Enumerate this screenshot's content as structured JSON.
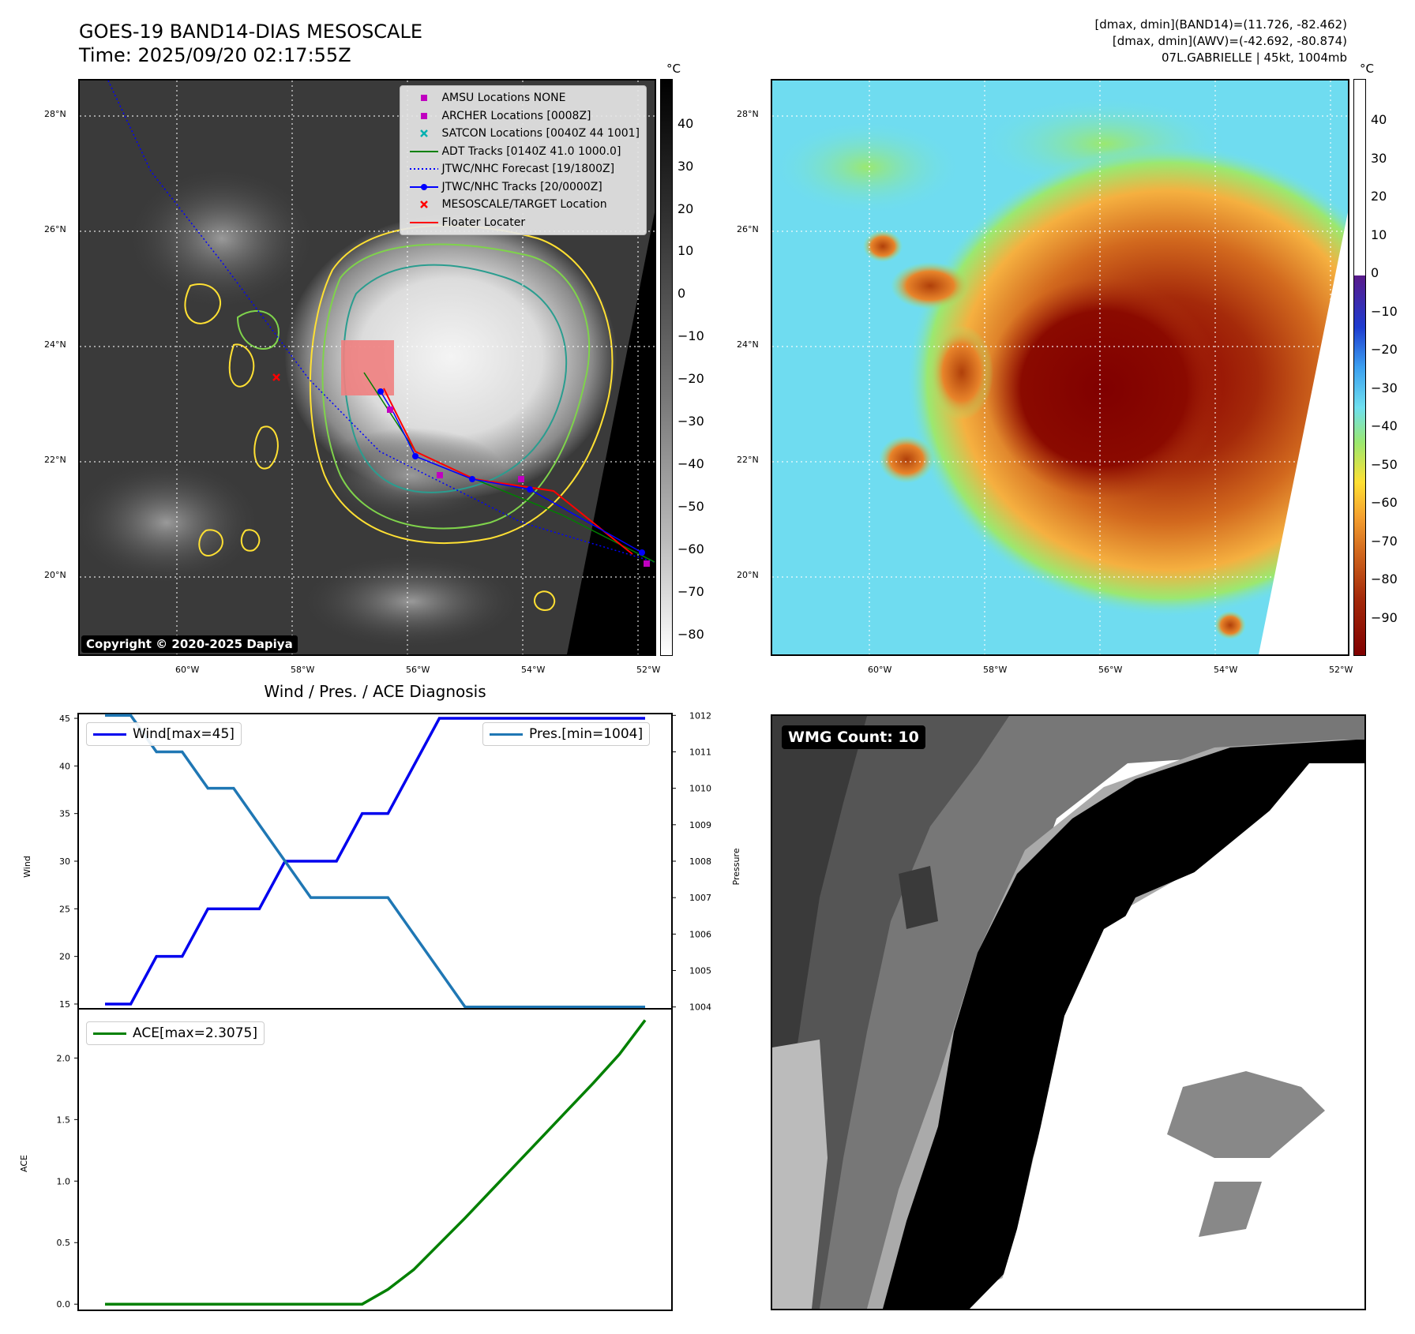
{
  "header": {
    "title_line1": "GOES-19 BAND14-DIAS MESOSCALE",
    "title_line2": "Time: 2025/09/20 02:17:55Z",
    "info_line1": "[dmax, dmin](BAND14)=(11.726, -82.462)",
    "info_line2": "[dmax, dmin](AWV)=(-42.692, -80.874)",
    "info_line3": "07L.GABRIELLE | 45kt, 1004mb"
  },
  "map": {
    "lon_ticks": [
      "60°W",
      "58°W",
      "56°W",
      "54°W",
      "52°W"
    ],
    "lat_ticks": [
      "28°N",
      "26°N",
      "24°N",
      "22°N",
      "20°N"
    ],
    "colorbar_unit": "°C",
    "left_colorbar_ticks": [
      "40",
      "30",
      "20",
      "10",
      "0",
      "−10",
      "−20",
      "−30",
      "−40",
      "−50",
      "−60",
      "−70",
      "−80"
    ],
    "right_colorbar_ticks": [
      "40",
      "30",
      "20",
      "10",
      "0",
      "−10",
      "−20",
      "−30",
      "−40",
      "−50",
      "−60",
      "−70",
      "−80",
      "−90"
    ],
    "copyright": "Copyright © 2020-2025 Dapiya",
    "legend": [
      {
        "label": "AMSU Locations NONE",
        "symbol": "square",
        "color": "#c000c0"
      },
      {
        "label": "ARCHER Locations [0008Z]",
        "symbol": "square",
        "color": "#c000c0"
      },
      {
        "label": "SATCON Locations [0040Z 44 1001]",
        "symbol": "x",
        "color": "#00b0b0"
      },
      {
        "label": "ADT Tracks [0140Z 41.0 1000.0]",
        "symbol": "line",
        "color": "#008000"
      },
      {
        "label": "JTWC/NHC Forecast [19/1800Z]",
        "symbol": "dotted",
        "color": "#0000ff"
      },
      {
        "label": "JTWC/NHC Tracks [20/0000Z]",
        "symbol": "line-dot",
        "color": "#0000ff"
      },
      {
        "label": "MESOSCALE/TARGET Location",
        "symbol": "x",
        "color": "#ff0000"
      },
      {
        "label": "Floater Locater",
        "symbol": "line",
        "color": "#ff0000"
      }
    ]
  },
  "diagnosis": {
    "title": "Wind / Pres. / ACE Diagnosis",
    "wind_legend": "Wind[max=45]",
    "pres_legend": "Pres.[min=1004]",
    "ace_legend": "ACE[max=2.3075]",
    "wind_axis_label": "Wind",
    "pres_axis_label": "Pressure",
    "ace_axis_label": "ACE",
    "wind_color": "#0000ee",
    "pres_color": "#1f77b4",
    "ace_color": "#008000"
  },
  "wmg": {
    "label": "WMG Count: 10"
  },
  "chart_data": [
    {
      "type": "line",
      "title": "Wind / Pres. / ACE Diagnosis",
      "series": [
        {
          "name": "Wind[max=45]",
          "axis": "left",
          "values": [
            15,
            15,
            20,
            20,
            25,
            25,
            25,
            30,
            30,
            30,
            35,
            35,
            40,
            45,
            45,
            45,
            45,
            45,
            45,
            45,
            45,
            45
          ]
        },
        {
          "name": "Pres.[min=1004]",
          "axis": "right",
          "values": [
            1012,
            1012,
            1011,
            1011,
            1010,
            1010,
            1009,
            1008,
            1007,
            1007,
            1007,
            1007,
            1006,
            1005,
            1004,
            1004,
            1004,
            1004,
            1004,
            1004,
            1004,
            1004
          ]
        }
      ],
      "ylabel": "Wind",
      "y2label": "Pressure",
      "ylim": [
        14.5,
        45.5
      ],
      "y2lim": [
        1003.95,
        1012.05
      ],
      "yticks": [
        15,
        20,
        25,
        30,
        35,
        40,
        45
      ],
      "y2ticks": [
        1004,
        1005,
        1006,
        1007,
        1008,
        1009,
        1010,
        1011,
        1012
      ]
    },
    {
      "type": "line",
      "series": [
        {
          "name": "ACE[max=2.3075]",
          "values": [
            0,
            0,
            0,
            0,
            0,
            0,
            0,
            0,
            0,
            0,
            0,
            0.12,
            0.28,
            0.49,
            0.7,
            0.92,
            1.14,
            1.36,
            1.58,
            1.8,
            2.03,
            2.3075
          ]
        }
      ],
      "ylabel": "ACE",
      "ylim": [
        -0.05,
        2.4
      ],
      "yticks": [
        0.0,
        0.5,
        1.0,
        1.5,
        2.0
      ],
      "ytick_labels": [
        "0.0",
        "0.5",
        "1.0",
        "1.5",
        "2.0"
      ]
    }
  ]
}
